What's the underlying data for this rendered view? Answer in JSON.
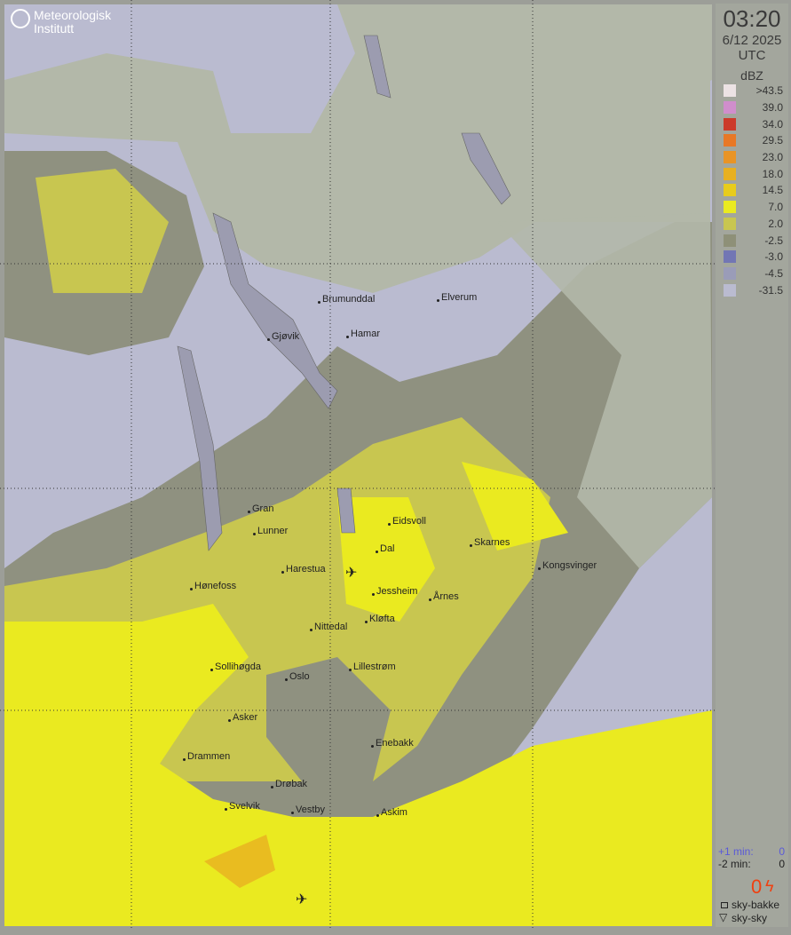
{
  "header": {
    "brand": "Meteorologisk Institutt",
    "time": "03:20",
    "date": "6/12 2025",
    "timezone": "UTC"
  },
  "legend": {
    "unit": "dBZ",
    "items": [
      {
        "label": ">43.5",
        "color": "#ece2e4"
      },
      {
        "label": "39.0",
        "color": "#d08ecc"
      },
      {
        "label": "34.0",
        "color": "#cc3a2a"
      },
      {
        "label": "29.5",
        "color": "#e87826"
      },
      {
        "label": "23.0",
        "color": "#e89426"
      },
      {
        "label": "18.0",
        "color": "#e8b020"
      },
      {
        "label": "14.5",
        "color": "#e8cc1c"
      },
      {
        "label": "7.0",
        "color": "#eaea20"
      },
      {
        "label": "2.0",
        "color": "#c8c650"
      },
      {
        "label": "-2.5",
        "color": "#8e9078"
      },
      {
        "label": "-3.0",
        "color": "#7276b4"
      },
      {
        "label": "-4.5",
        "color": "#9a9cb8"
      },
      {
        "label": "-31.5",
        "color": "#babbd0"
      }
    ]
  },
  "lightning": {
    "plus1_label": "+1 min:",
    "plus1_value": "0",
    "minus2_label": "-2 min:",
    "minus2_value": "0",
    "count": "0",
    "ground_label": "sky-bakke",
    "cloud_label": "sky-sky"
  },
  "cities": [
    "Brumunddal",
    "Elverum",
    "Gjøvik",
    "Hamar",
    "Gran",
    "Lunner",
    "Eidsvoll",
    "Dal",
    "Skarnes",
    "Kongsvinger",
    "Harestua",
    "Hønefoss",
    "Jessheim",
    "Årnes",
    "Kløfta",
    "Nittedal",
    "Sollihøgda",
    "Lillestrøm",
    "Oslo",
    "Asker",
    "Enebakk",
    "Drammen",
    "Drøbak",
    "Svelvik",
    "Vestby",
    "Askim"
  ],
  "icons": {
    "airport": "airplane-icon",
    "logo": "met-logo-icon"
  }
}
